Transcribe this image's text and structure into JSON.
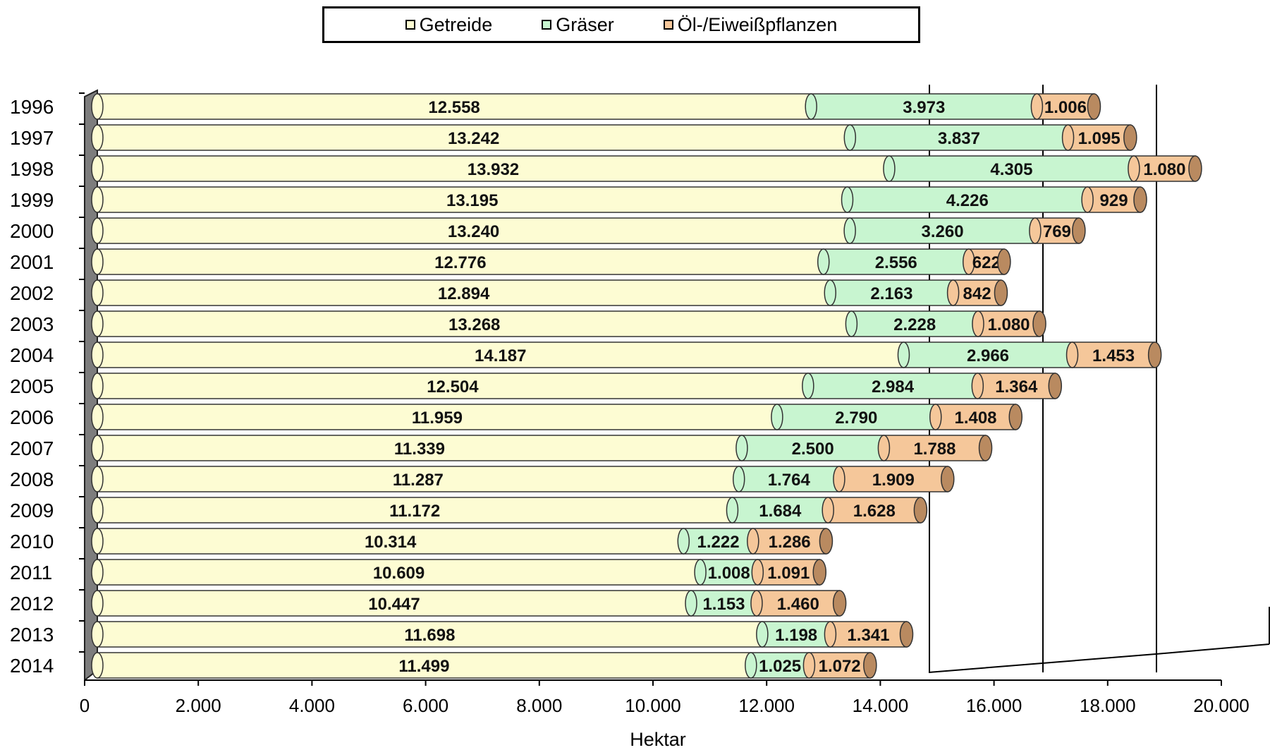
{
  "chart_data": {
    "type": "bar",
    "orientation": "horizontal",
    "stacked": true,
    "categories": [
      "1996",
      "1997",
      "1998",
      "1999",
      "2000",
      "2001",
      "2002",
      "2003",
      "2004",
      "2005",
      "2006",
      "2007",
      "2008",
      "2009",
      "2010",
      "2011",
      "2012",
      "2013",
      "2014"
    ],
    "series": [
      {
        "name": "Getreide",
        "color": "#fdfcd3",
        "labels": [
          "12.558",
          "13.242",
          "13.932",
          "13.195",
          "13.240",
          "12.776",
          "12.894",
          "13.268",
          "14.187",
          "12.504",
          "11.959",
          "11.339",
          "11.287",
          "11.172",
          "10.314",
          "10.609",
          "10.447",
          "11.698",
          "11.499"
        ],
        "values": [
          12558,
          13242,
          13932,
          13195,
          13240,
          12776,
          12894,
          13268,
          14187,
          12504,
          11959,
          11339,
          11287,
          11172,
          10314,
          10609,
          10447,
          11698,
          11499
        ]
      },
      {
        "name": "Gräser",
        "color": "#c8f5d0",
        "labels": [
          "3.973",
          "3.837",
          "4.305",
          "4.226",
          "3.260",
          "2.556",
          "2.163",
          "2.228",
          "2.966",
          "2.984",
          "2.790",
          "2.500",
          "1.764",
          "1.684",
          "1.222",
          "1.008",
          "1.153",
          "1.198",
          "1.025"
        ],
        "values": [
          3973,
          3837,
          4305,
          4226,
          3260,
          2556,
          2163,
          2228,
          2966,
          2984,
          2790,
          2500,
          1764,
          1684,
          1222,
          1008,
          1153,
          1198,
          1025
        ]
      },
      {
        "name": "Öl-/Eiweißpflanzen",
        "color": "#f5c79a",
        "labels": [
          "1.006",
          "1.095",
          "1.080",
          "929",
          "769",
          "622",
          "842",
          "1.080",
          "1.453",
          "1.364",
          "1.408",
          "1.788",
          "1.909",
          "1.628",
          "1.286",
          "1.091",
          "1.460",
          "1.341",
          "1.072"
        ],
        "values": [
          1006,
          1095,
          1080,
          929,
          769,
          622,
          842,
          1080,
          1453,
          1364,
          1408,
          1788,
          1909,
          1628,
          1286,
          1091,
          1460,
          1341,
          1072
        ]
      }
    ],
    "xlabel": "Hektar",
    "xlim": [
      0,
      20000
    ],
    "x_ticks": [
      "0",
      "2.000",
      "4.000",
      "6.000",
      "8.000",
      "10.000",
      "12.000",
      "14.000",
      "16.000",
      "18.000",
      "20.000"
    ],
    "x_tick_values": [
      0,
      2000,
      4000,
      6000,
      8000,
      10000,
      12000,
      14000,
      16000,
      18000,
      20000
    ],
    "legend_position": "top-center",
    "grid": false
  }
}
